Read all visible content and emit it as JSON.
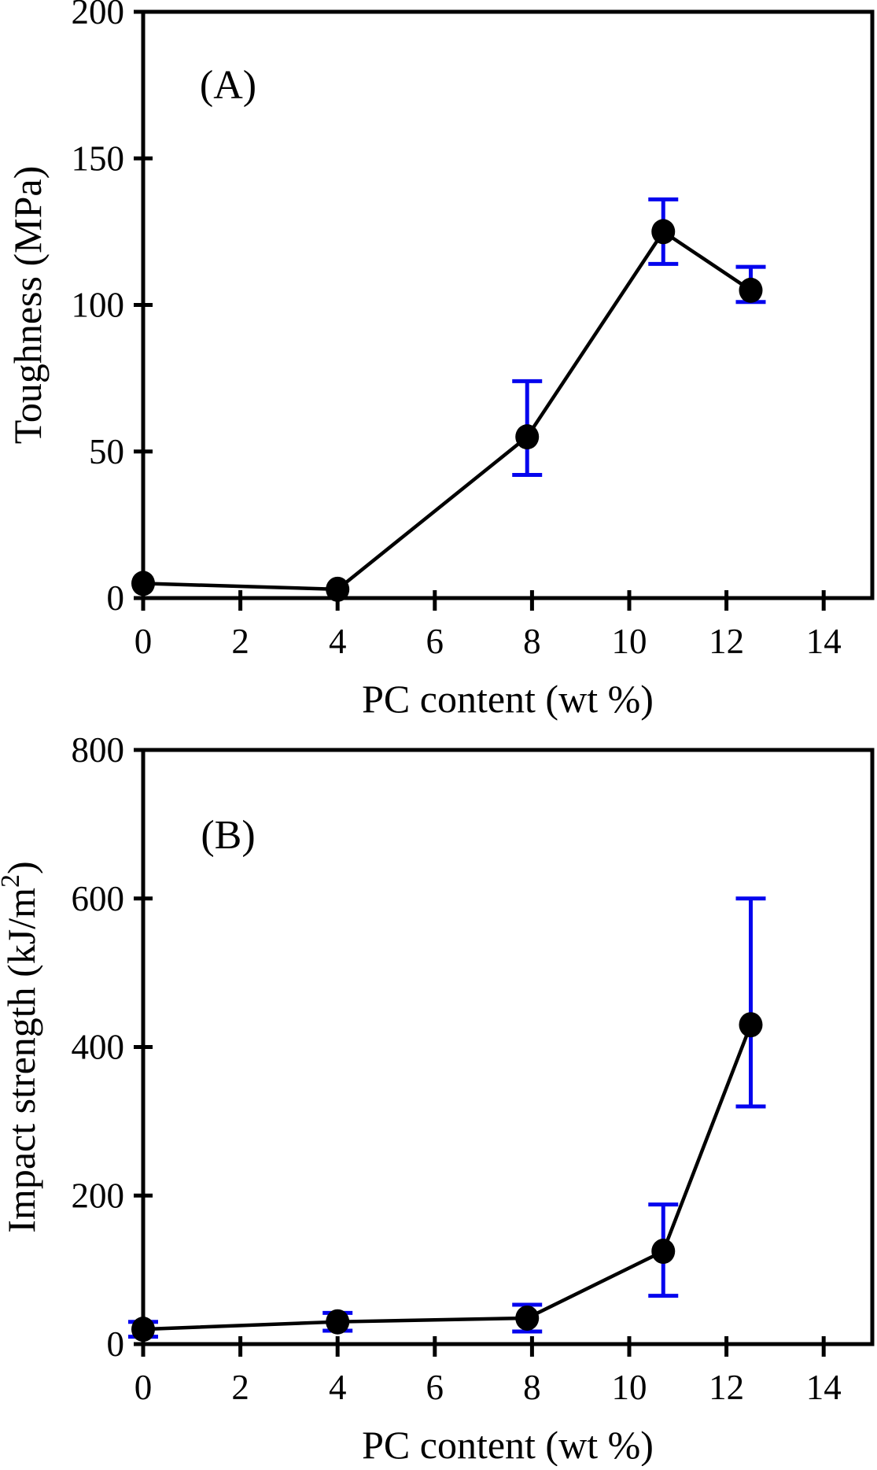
{
  "figure": {
    "background": "#ffffff",
    "axis_color": "#000000",
    "line_color": "#000000",
    "marker_color": "#000000",
    "error_bar_color": "#0505ee"
  },
  "chart_data": [
    {
      "type": "line",
      "panel_label": "(A)",
      "xlabel": "PC content (wt %)",
      "ylabel": "Toughness (MPa)",
      "ylabel_sup": "",
      "ylabel_end": "",
      "xlim": [
        0,
        15
      ],
      "ylim": [
        0,
        200
      ],
      "xticks": [
        0,
        2,
        4,
        6,
        8,
        10,
        12,
        14
      ],
      "yticks": [
        0,
        50,
        100,
        150,
        200
      ],
      "grid": false,
      "legend": "none",
      "series": [
        {
          "name": "toughness",
          "x": [
            0,
            4,
            7.9,
            10.7,
            12.5
          ],
          "y": [
            5,
            3,
            55,
            125,
            105
          ],
          "err_minus": [
            0,
            0,
            13,
            11,
            4
          ],
          "err_plus": [
            0,
            0,
            19,
            11,
            8
          ]
        }
      ]
    },
    {
      "type": "line",
      "panel_label": "(B)",
      "xlabel": "PC content (wt %)",
      "ylabel": "Impact strength (kJ/m",
      "ylabel_sup": "2",
      "ylabel_end": ")",
      "xlim": [
        0,
        15
      ],
      "ylim": [
        0,
        800
      ],
      "xticks": [
        0,
        2,
        4,
        6,
        8,
        10,
        12,
        14
      ],
      "yticks": [
        0,
        200,
        400,
        600,
        800
      ],
      "grid": false,
      "legend": "none",
      "series": [
        {
          "name": "impact-strength",
          "x": [
            0,
            4,
            7.9,
            10.7,
            12.5
          ],
          "y": [
            20,
            30,
            35,
            125,
            430
          ],
          "err_minus": [
            10,
            12,
            18,
            60,
            110
          ],
          "err_plus": [
            10,
            12,
            18,
            63,
            170
          ]
        }
      ]
    }
  ]
}
